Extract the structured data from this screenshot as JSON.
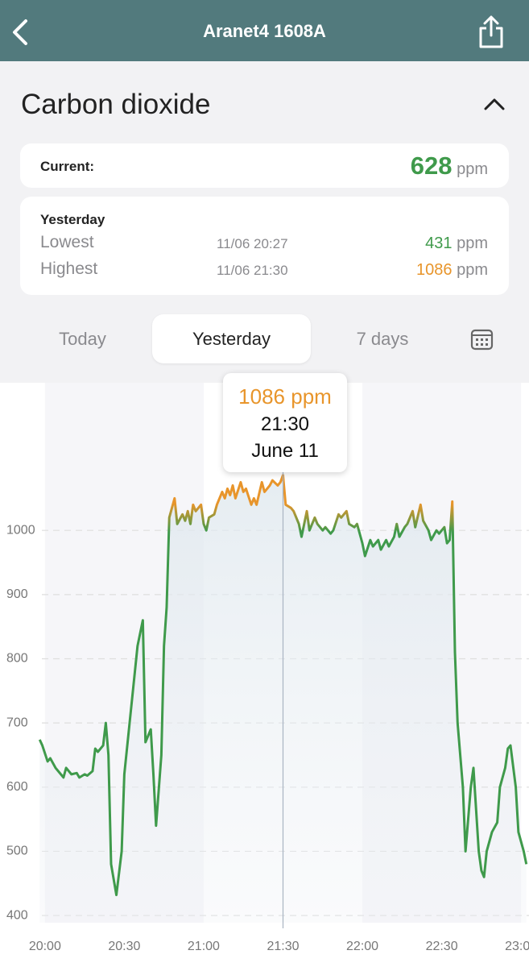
{
  "header": {
    "title": "Aranet4 1608A"
  },
  "section": {
    "title": "Carbon dioxide"
  },
  "current": {
    "label": "Current:",
    "value": 628,
    "unit": "ppm",
    "color": "#3f9a4b"
  },
  "yesterday": {
    "heading": "Yesterday",
    "rows": [
      {
        "label": "Lowest",
        "time": "11/06 20:27",
        "value": 431,
        "unit": "ppm",
        "color": "#3f9a4b"
      },
      {
        "label": "Highest",
        "time": "11/06 21:30",
        "value": 1086,
        "unit": "ppm",
        "color": "#e8952b"
      }
    ]
  },
  "tabs": [
    "Today",
    "Yesterday",
    "7 days"
  ],
  "chart_data": {
    "type": "line",
    "x": [
      "19:58",
      "19:59",
      "20:01",
      "20:02",
      "20:04",
      "20:05",
      "20:07",
      "20:08",
      "20:10",
      "20:12",
      "20:13",
      "20:15",
      "20:16",
      "20:18",
      "20:19",
      "20:20",
      "20:22",
      "20:23",
      "20:24",
      "20:25",
      "20:27",
      "20:29",
      "20:30",
      "20:32",
      "20:34",
      "20:35",
      "20:37",
      "20:38",
      "20:40",
      "20:41",
      "20:42",
      "20:44",
      "20:45",
      "20:46",
      "20:47",
      "20:49",
      "20:50",
      "20:52",
      "20:53",
      "20:54",
      "20:55",
      "20:56",
      "20:57",
      "20:59",
      "21:00",
      "21:01",
      "21:02",
      "21:04",
      "21:05",
      "21:07",
      "21:08",
      "21:09",
      "21:10",
      "21:11",
      "21:12",
      "21:14",
      "21:15",
      "21:16",
      "21:18",
      "21:19",
      "21:20",
      "21:22",
      "21:23",
      "21:25",
      "21:26",
      "21:28",
      "21:29",
      "21:30",
      "21:31",
      "21:33",
      "21:34",
      "21:36",
      "21:37",
      "21:39",
      "21:40",
      "21:42",
      "21:43",
      "21:45",
      "21:46",
      "21:48",
      "21:49",
      "21:51",
      "21:52",
      "21:54",
      "21:55",
      "21:57",
      "21:58",
      "22:00",
      "22:01",
      "22:03",
      "22:04",
      "22:06",
      "22:07",
      "22:09",
      "22:10",
      "22:12",
      "22:13",
      "22:14",
      "22:16",
      "22:17",
      "22:19",
      "22:20",
      "22:22",
      "22:23",
      "22:25",
      "22:26",
      "22:28",
      "22:29",
      "22:31",
      "22:32",
      "22:33",
      "22:34",
      "22:35",
      "22:36",
      "22:38",
      "22:39",
      "22:41",
      "22:42",
      "22:44",
      "22:45",
      "22:46",
      "22:47",
      "22:49",
      "22:51",
      "22:52",
      "22:54",
      "22:55",
      "22:56",
      "22:58",
      "22:59",
      "23:01",
      "23:02"
    ],
    "series": [
      {
        "color": "#3f9a4b",
        "high_color": "#e8952b",
        "values": [
          674,
          665,
          640,
          645,
          630,
          625,
          615,
          630,
          620,
          622,
          615,
          620,
          618,
          625,
          660,
          655,
          665,
          700,
          650,
          480,
          432,
          500,
          620,
          700,
          780,
          820,
          860,
          670,
          690,
          620,
          540,
          650,
          820,
          880,
          1020,
          1050,
          1010,
          1025,
          1015,
          1030,
          1010,
          1040,
          1030,
          1040,
          1010,
          1000,
          1020,
          1025,
          1040,
          1060,
          1050,
          1065,
          1055,
          1070,
          1050,
          1075,
          1060,
          1065,
          1040,
          1050,
          1040,
          1075,
          1060,
          1070,
          1078,
          1070,
          1075,
          1086,
          1040,
          1035,
          1030,
          1010,
          990,
          1030,
          1000,
          1020,
          1010,
          1000,
          1005,
          995,
          1000,
          1025,
          1020,
          1030,
          1010,
          1005,
          1010,
          980,
          960,
          985,
          975,
          985,
          970,
          985,
          975,
          990,
          1010,
          990,
          1005,
          1010,
          1030,
          1005,
          1040,
          1015,
          1000,
          985,
          1000,
          995,
          1005,
          980,
          985,
          1045,
          810,
          700,
          600,
          500,
          600,
          630,
          500,
          470,
          460,
          500,
          530,
          545,
          600,
          630,
          660,
          665,
          600,
          530,
          500,
          480
        ]
      }
    ],
    "xlim": [
      "19:43",
      "23:03"
    ],
    "ylim": [
      370,
      1230
    ],
    "xticks": [
      "20:00",
      "20:30",
      "21:00",
      "21:30",
      "22:00",
      "22:30",
      "23:00"
    ],
    "yticks": [
      400,
      500,
      600,
      700,
      800,
      900,
      1000
    ],
    "grid": true,
    "tooltip": {
      "value_label": "1086 ppm",
      "time": "21:30",
      "date": "June 11"
    }
  }
}
